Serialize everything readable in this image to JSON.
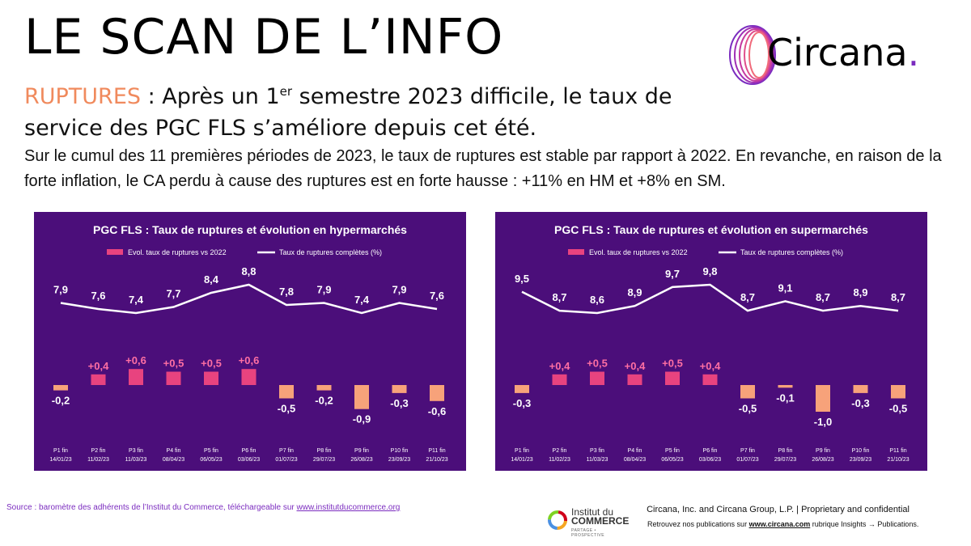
{
  "header": {
    "title": "LE SCAN DE L’INFO",
    "keyword": "RUPTURES",
    "headline_a": " : Après un 1",
    "headline_sup": "er",
    "headline_b": " semestre 2023 difficile, le taux de service des PGC FLS s’améliore depuis cet été.",
    "paragraph": "Sur le cumul des 11 premières périodes de 2023, le taux de ruptures est stable par rapport à 2022. En revanche, en raison de la forte inflation, le CA perdu à cause des ruptures est en forte hausse : +11% en HM et +8% en SM."
  },
  "logo": {
    "name": "Circana",
    "dot": "."
  },
  "colors": {
    "panel_bg": "#4b0e7a",
    "bar_positive": "#e8437f",
    "bar_negative": "#f7a27a",
    "label_positive": "#ff6fa3",
    "line": "#ffffff"
  },
  "chart_data": [
    {
      "type": "line+bar",
      "title": "PGC FLS : Taux de ruptures et évolution en hypermarchés",
      "legend": {
        "bar": "Evol. taux de ruptures vs 2022",
        "line": "Taux de ruptures complètes (%)"
      },
      "categories": [
        [
          "P1 fin",
          "14/01/23"
        ],
        [
          "P2 fin",
          "11/02/23"
        ],
        [
          "P3 fin",
          "11/03/23"
        ],
        [
          "P4 fin",
          "08/04/23"
        ],
        [
          "P5 fin",
          "06/05/23"
        ],
        [
          "P6 fin",
          "03/06/23"
        ],
        [
          "P7 fin",
          "01/07/23"
        ],
        [
          "P8 fin",
          "29/07/23"
        ],
        [
          "P9 fin",
          "26/08/23"
        ],
        [
          "P10 fin",
          "23/09/23"
        ],
        [
          "P11 fin",
          "21/10/23"
        ]
      ],
      "line_values": [
        7.9,
        7.6,
        7.4,
        7.7,
        8.4,
        8.8,
        7.8,
        7.9,
        7.4,
        7.9,
        7.6
      ],
      "line_labels": [
        "7,9",
        "7,6",
        "7,4",
        "7,7",
        "8,4",
        "8,8",
        "7,8",
        "7,9",
        "7,4",
        "7,9",
        "7,6"
      ],
      "bar_values": [
        -0.2,
        0.4,
        0.6,
        0.5,
        0.5,
        0.6,
        -0.5,
        -0.2,
        -0.9,
        -0.3,
        -0.6
      ],
      "bar_labels": [
        "-0,2",
        "+0,4",
        "+0,6",
        "+0,5",
        "+0,5",
        "+0,6",
        "-0,5",
        "-0,2",
        "-0,9",
        "-0,3",
        "-0,6"
      ]
    },
    {
      "type": "line+bar",
      "title": "PGC FLS : Taux de ruptures et évolution en supermarchés",
      "legend": {
        "bar": "Evol. taux de ruptures vs 2022",
        "line": "Taux de ruptures complètes (%)"
      },
      "categories": [
        [
          "P1 fin",
          "14/01/23"
        ],
        [
          "P2 fin",
          "11/02/23"
        ],
        [
          "P3 fin",
          "11/03/23"
        ],
        [
          "P4 fin",
          "08/04/23"
        ],
        [
          "P5 fin",
          "06/05/23"
        ],
        [
          "P6 fin",
          "03/06/23"
        ],
        [
          "P7 fin",
          "01/07/23"
        ],
        [
          "P8 fin",
          "29/07/23"
        ],
        [
          "P9 fin",
          "26/08/23"
        ],
        [
          "P10 fin",
          "23/09/23"
        ],
        [
          "P11 fin",
          "21/10/23"
        ]
      ],
      "line_values": [
        9.5,
        8.7,
        8.6,
        8.9,
        9.7,
        9.8,
        8.7,
        9.1,
        8.7,
        8.9,
        8.7
      ],
      "line_labels": [
        "9,5",
        "8,7",
        "8,6",
        "8,9",
        "9,7",
        "9,8",
        "8,7",
        "9,1",
        "8,7",
        "8,9",
        "8,7"
      ],
      "bar_values": [
        -0.3,
        0.4,
        0.5,
        0.4,
        0.5,
        0.4,
        -0.5,
        -0.1,
        -1.0,
        -0.3,
        -0.5
      ],
      "bar_labels": [
        "-0,3",
        "+0,4",
        "+0,5",
        "+0,4",
        "+0,5",
        "+0,4",
        "-0,5",
        "-0,1",
        "-1,0",
        "-0,3",
        "-0,5"
      ]
    }
  ],
  "footer": {
    "source_label": "Source :",
    "source_text": "  baromètre des adhérents de l’Institut du Commerce, téléchargeable sur ",
    "source_link": "www.institutducommerce.org",
    "idc_line1": "Institut du",
    "idc_line2": "COMMERCE",
    "idc_tagline": "PARTAGE • PROSPECTIVE",
    "legal": "Circana, Inc. and Circana Group, L.P. |  Proprietary and confidential",
    "pubs_a": "Retrouvez nos publications sur ",
    "pubs_link": "www.circana.com",
    "pubs_b": " rubrique Insights → Publications."
  }
}
